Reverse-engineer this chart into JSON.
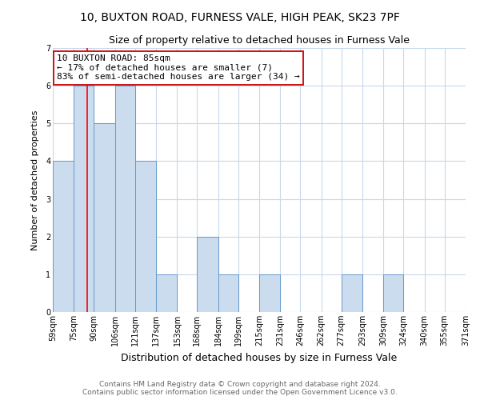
{
  "title": "10, BUXTON ROAD, FURNESS VALE, HIGH PEAK, SK23 7PF",
  "subtitle": "Size of property relative to detached houses in Furness Vale",
  "xlabel": "Distribution of detached houses by size in Furness Vale",
  "ylabel": "Number of detached properties",
  "bin_edges": [
    59,
    75,
    90,
    106,
    121,
    137,
    153,
    168,
    184,
    199,
    215,
    231,
    246,
    262,
    277,
    293,
    309,
    324,
    340,
    355,
    371
  ],
  "bar_heights": [
    4,
    6,
    5,
    6,
    4,
    1,
    0,
    2,
    1,
    0,
    1,
    0,
    0,
    0,
    1,
    0,
    1,
    0,
    0,
    0
  ],
  "bar_color": "#ccdcef",
  "bar_edge_color": "#6699cc",
  "red_line_x": 85,
  "ylim": [
    0,
    7
  ],
  "yticks": [
    0,
    1,
    2,
    3,
    4,
    5,
    6,
    7
  ],
  "annotation_title": "10 BUXTON ROAD: 85sqm",
  "annotation_line1": "← 17% of detached houses are smaller (7)",
  "annotation_line2": "83% of semi-detached houses are larger (34) →",
  "annotation_box_color": "#ffffff",
  "annotation_border_color": "#cc0000",
  "footer_line1": "Contains HM Land Registry data © Crown copyright and database right 2024.",
  "footer_line2": "Contains public sector information licensed under the Open Government Licence v3.0.",
  "background_color": "#ffffff",
  "grid_color": "#c8d8ec",
  "title_fontsize": 10,
  "subtitle_fontsize": 9,
  "xlabel_fontsize": 9,
  "ylabel_fontsize": 8,
  "tick_fontsize": 7,
  "footer_fontsize": 6.5,
  "annotation_fontsize": 8
}
